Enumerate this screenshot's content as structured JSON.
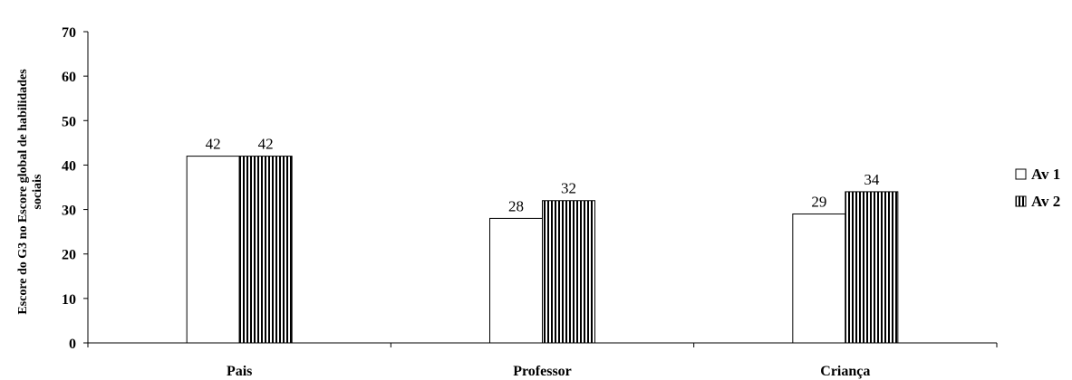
{
  "chart_data": {
    "type": "bar",
    "title": "",
    "xlabel": "",
    "ylabel_lines": [
      "Escore do G3 no Escore global de habilidades",
      "sociais"
    ],
    "categories": [
      "Pais",
      "Professor",
      "Criança"
    ],
    "series": [
      {
        "name": "Av 1",
        "values": [
          42,
          28,
          29
        ],
        "pattern": "solid-white"
      },
      {
        "name": "Av 2",
        "values": [
          42,
          32,
          34
        ],
        "pattern": "vertical-stripes"
      }
    ],
    "ylim": [
      0,
      70
    ],
    "yticks": [
      0,
      10,
      20,
      30,
      40,
      50,
      60,
      70
    ],
    "grid": false,
    "legend_position": "right"
  },
  "colors": {
    "axis": "#000000",
    "bar_fill": "#ffffff",
    "stripe": "#000000"
  }
}
